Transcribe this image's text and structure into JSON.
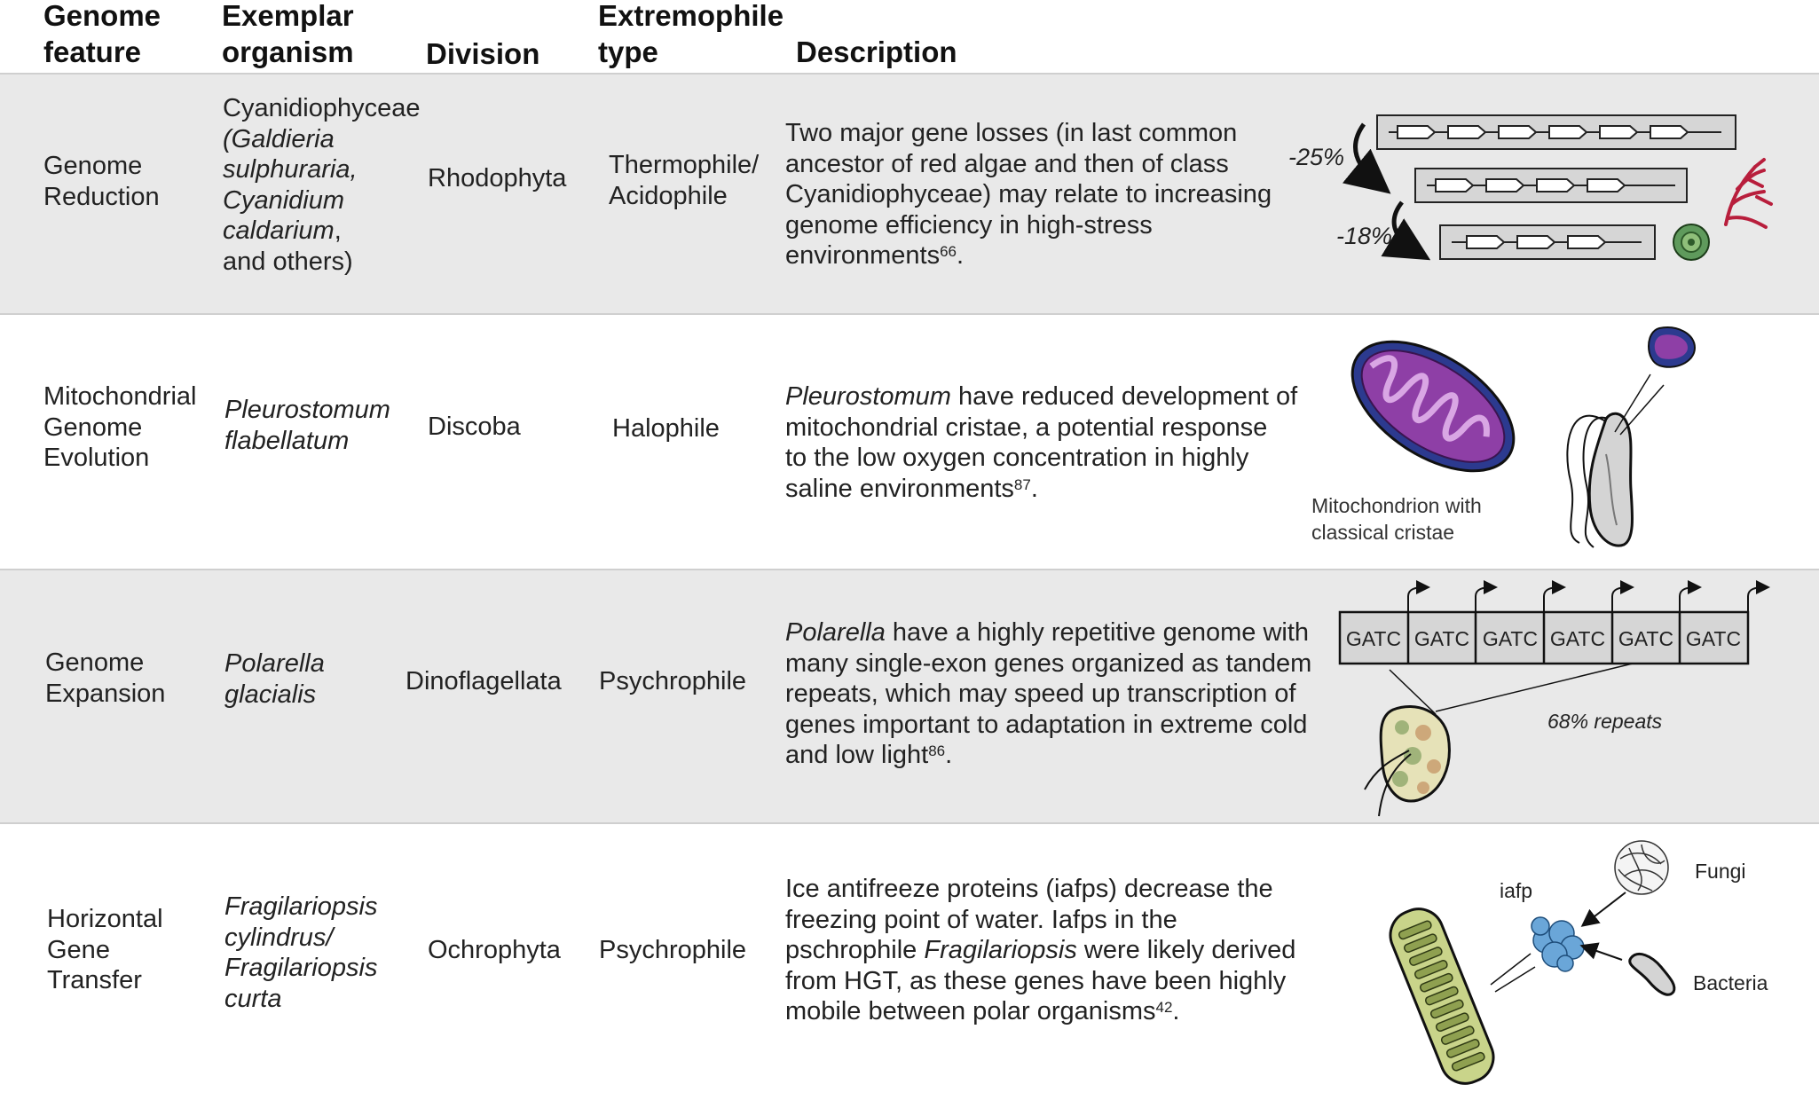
{
  "headers": {
    "feature": [
      "Genome",
      "feature"
    ],
    "organism": [
      "Exemplar",
      "organism"
    ],
    "division": "Division",
    "extremophile": [
      "Extremophile",
      "type"
    ],
    "description": "Description"
  },
  "rows": [
    {
      "feature": [
        "Genome",
        "Reduction"
      ],
      "organism": [
        "Cyanidiophyceae",
        "(Galdieria",
        "sulphuraria,",
        "Cyanidium",
        "caldarium",
        ",",
        "and others)"
      ],
      "division": "Rhodophyta",
      "extremophile": [
        "Thermophile/",
        "Acidophile"
      ],
      "description": [
        "Two major gene losses (in last common",
        "ancestor of red algae and then of class",
        "Cyanidiophyceae) may relate to increasing",
        "genome efficiency in high-stress",
        "environments"
      ],
      "ref": "66",
      "illustration": {
        "top_loss": "-25%",
        "bottom_loss": "-18%"
      }
    },
    {
      "feature": [
        "Mitochondrial",
        "Genome",
        "Evolution"
      ],
      "organism": [
        "Pleurostomum",
        "flabellatum"
      ],
      "division": "Discoba",
      "extremophile": "Halophile",
      "description_italic": "Pleurostomum",
      "description": [
        " have reduced development of",
        "mitochondrial cristae, a potential response",
        "to the low oxygen concentration in highly",
        "saline environments"
      ],
      "ref": "87",
      "illustration": {
        "caption": [
          "Mitochondrion with",
          "classical cristae"
        ]
      }
    },
    {
      "feature": [
        "Genome",
        "Expansion"
      ],
      "organism": [
        "Polarella",
        "glacialis"
      ],
      "division": "Dinoflagellata",
      "extremophile": "Psychrophile",
      "description_italic": "Polarella",
      "description": [
        " have a highly repetitive genome with",
        "many single-exon genes organized as tandem",
        "repeats, which may speed up transcription of",
        "genes important to adaptation in extreme cold",
        "and low light"
      ],
      "ref": "86",
      "illustration": {
        "repeat_unit": "GATC",
        "repeat_count": 6,
        "caption": "68% repeats"
      }
    },
    {
      "feature": [
        "Horizontal",
        "Gene",
        "Transfer"
      ],
      "organism": [
        "Fragilariopsis",
        "cylindrus/",
        "Fragilariopsis",
        "curta"
      ],
      "division": "Ochrophyta",
      "extremophile": "Psychrophile",
      "description": [
        "Ice antifreeze proteins (iafps) decrease the",
        "freezing point of water. Iafps in the",
        "pschrophile ",
        "Fragilariopsis",
        " were likely derived",
        "from HGT, as these genes have been highly",
        "mobile between polar organisms"
      ],
      "ref": "42",
      "illustration": {
        "protein": "iafp",
        "source_a": "Fungi",
        "source_b": "Bacteria"
      }
    }
  ],
  "colors": {
    "band": "#e9e9e9",
    "separator": "#cfcfcf",
    "mito_fill": "#8e3fa6",
    "mito_outline": "#2c3a8f",
    "diatom": "#c9d48a",
    "iafp": "#6aa6d8"
  }
}
